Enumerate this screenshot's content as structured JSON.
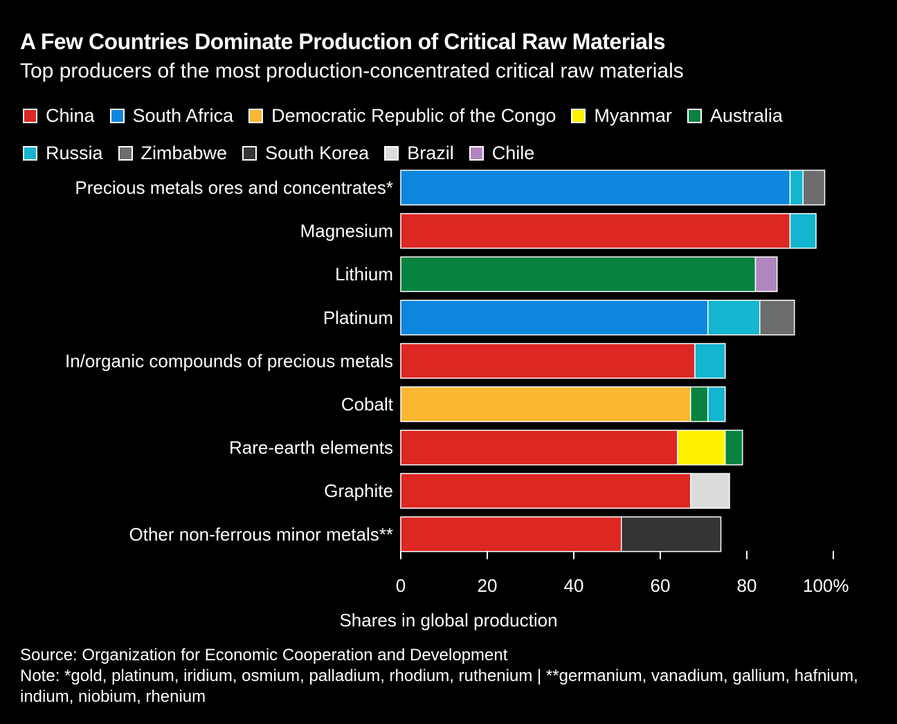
{
  "title": "A Few Countries Dominate Production of Critical Raw Materials",
  "subtitle": "Top producers of the most production-concentrated critical raw materials",
  "source": "Source: Organization for Economic Cooperation and Development",
  "note": "Note: *gold, platinum, iridium, osmium, palladium, rhodium, ruthenium | **germanium, vanadium, gallium, hafnium, indium, niobium, rhenium",
  "chart_data": {
    "type": "bar",
    "orientation": "horizontal",
    "stacked": true,
    "xlabel": "Shares in global production",
    "xlim": [
      0,
      100
    ],
    "xticks": [
      "0",
      "20",
      "40",
      "60",
      "80",
      "100%"
    ],
    "xtick_values": [
      0,
      20,
      40,
      60,
      80,
      100
    ],
    "legend_position": "top",
    "grid": false,
    "legend": [
      {
        "name": "China",
        "color": "#dc2723"
      },
      {
        "name": "South Africa",
        "color": "#0d86de"
      },
      {
        "name": "Democratic Republic of the Congo",
        "color": "#fbb731"
      },
      {
        "name": "Myanmar",
        "color": "#fff200"
      },
      {
        "name": "Australia",
        "color": "#07833f"
      },
      {
        "name": "Russia",
        "color": "#13b5cf"
      },
      {
        "name": "Zimbabwe",
        "color": "#6d6d6d"
      },
      {
        "name": "South Korea",
        "color": "#343434"
      },
      {
        "name": "Brazil",
        "color": "#dcdcdc"
      },
      {
        "name": "Chile",
        "color": "#b185c0"
      }
    ],
    "categories": [
      "Precious metals ores and concentrates*",
      "Magnesium",
      "Lithium",
      "Platinum",
      "In/organic compounds of precious metals",
      "Cobalt",
      "Rare-earth elements",
      "Graphite",
      "Other non-ferrous minor metals**"
    ],
    "bars": [
      [
        {
          "country": "South Africa",
          "value": 90
        },
        {
          "country": "Russia",
          "value": 3
        },
        {
          "country": "Zimbabwe",
          "value": 5
        }
      ],
      [
        {
          "country": "China",
          "value": 90
        },
        {
          "country": "Russia",
          "value": 6
        }
      ],
      [
        {
          "country": "Australia",
          "value": 82
        },
        {
          "country": "Chile",
          "value": 5
        }
      ],
      [
        {
          "country": "South Africa",
          "value": 71
        },
        {
          "country": "Russia",
          "value": 12
        },
        {
          "country": "Zimbabwe",
          "value": 8
        }
      ],
      [
        {
          "country": "China",
          "value": 68
        },
        {
          "country": "Russia",
          "value": 7
        }
      ],
      [
        {
          "country": "Democratic Republic of the Congo",
          "value": 67
        },
        {
          "country": "Australia",
          "value": 4
        },
        {
          "country": "Russia",
          "value": 4
        }
      ],
      [
        {
          "country": "China",
          "value": 64
        },
        {
          "country": "Myanmar",
          "value": 11
        },
        {
          "country": "Australia",
          "value": 4
        }
      ],
      [
        {
          "country": "China",
          "value": 67
        },
        {
          "country": "Brazil",
          "value": 9
        }
      ],
      [
        {
          "country": "China",
          "value": 51
        },
        {
          "country": "South Korea",
          "value": 23
        }
      ]
    ]
  }
}
